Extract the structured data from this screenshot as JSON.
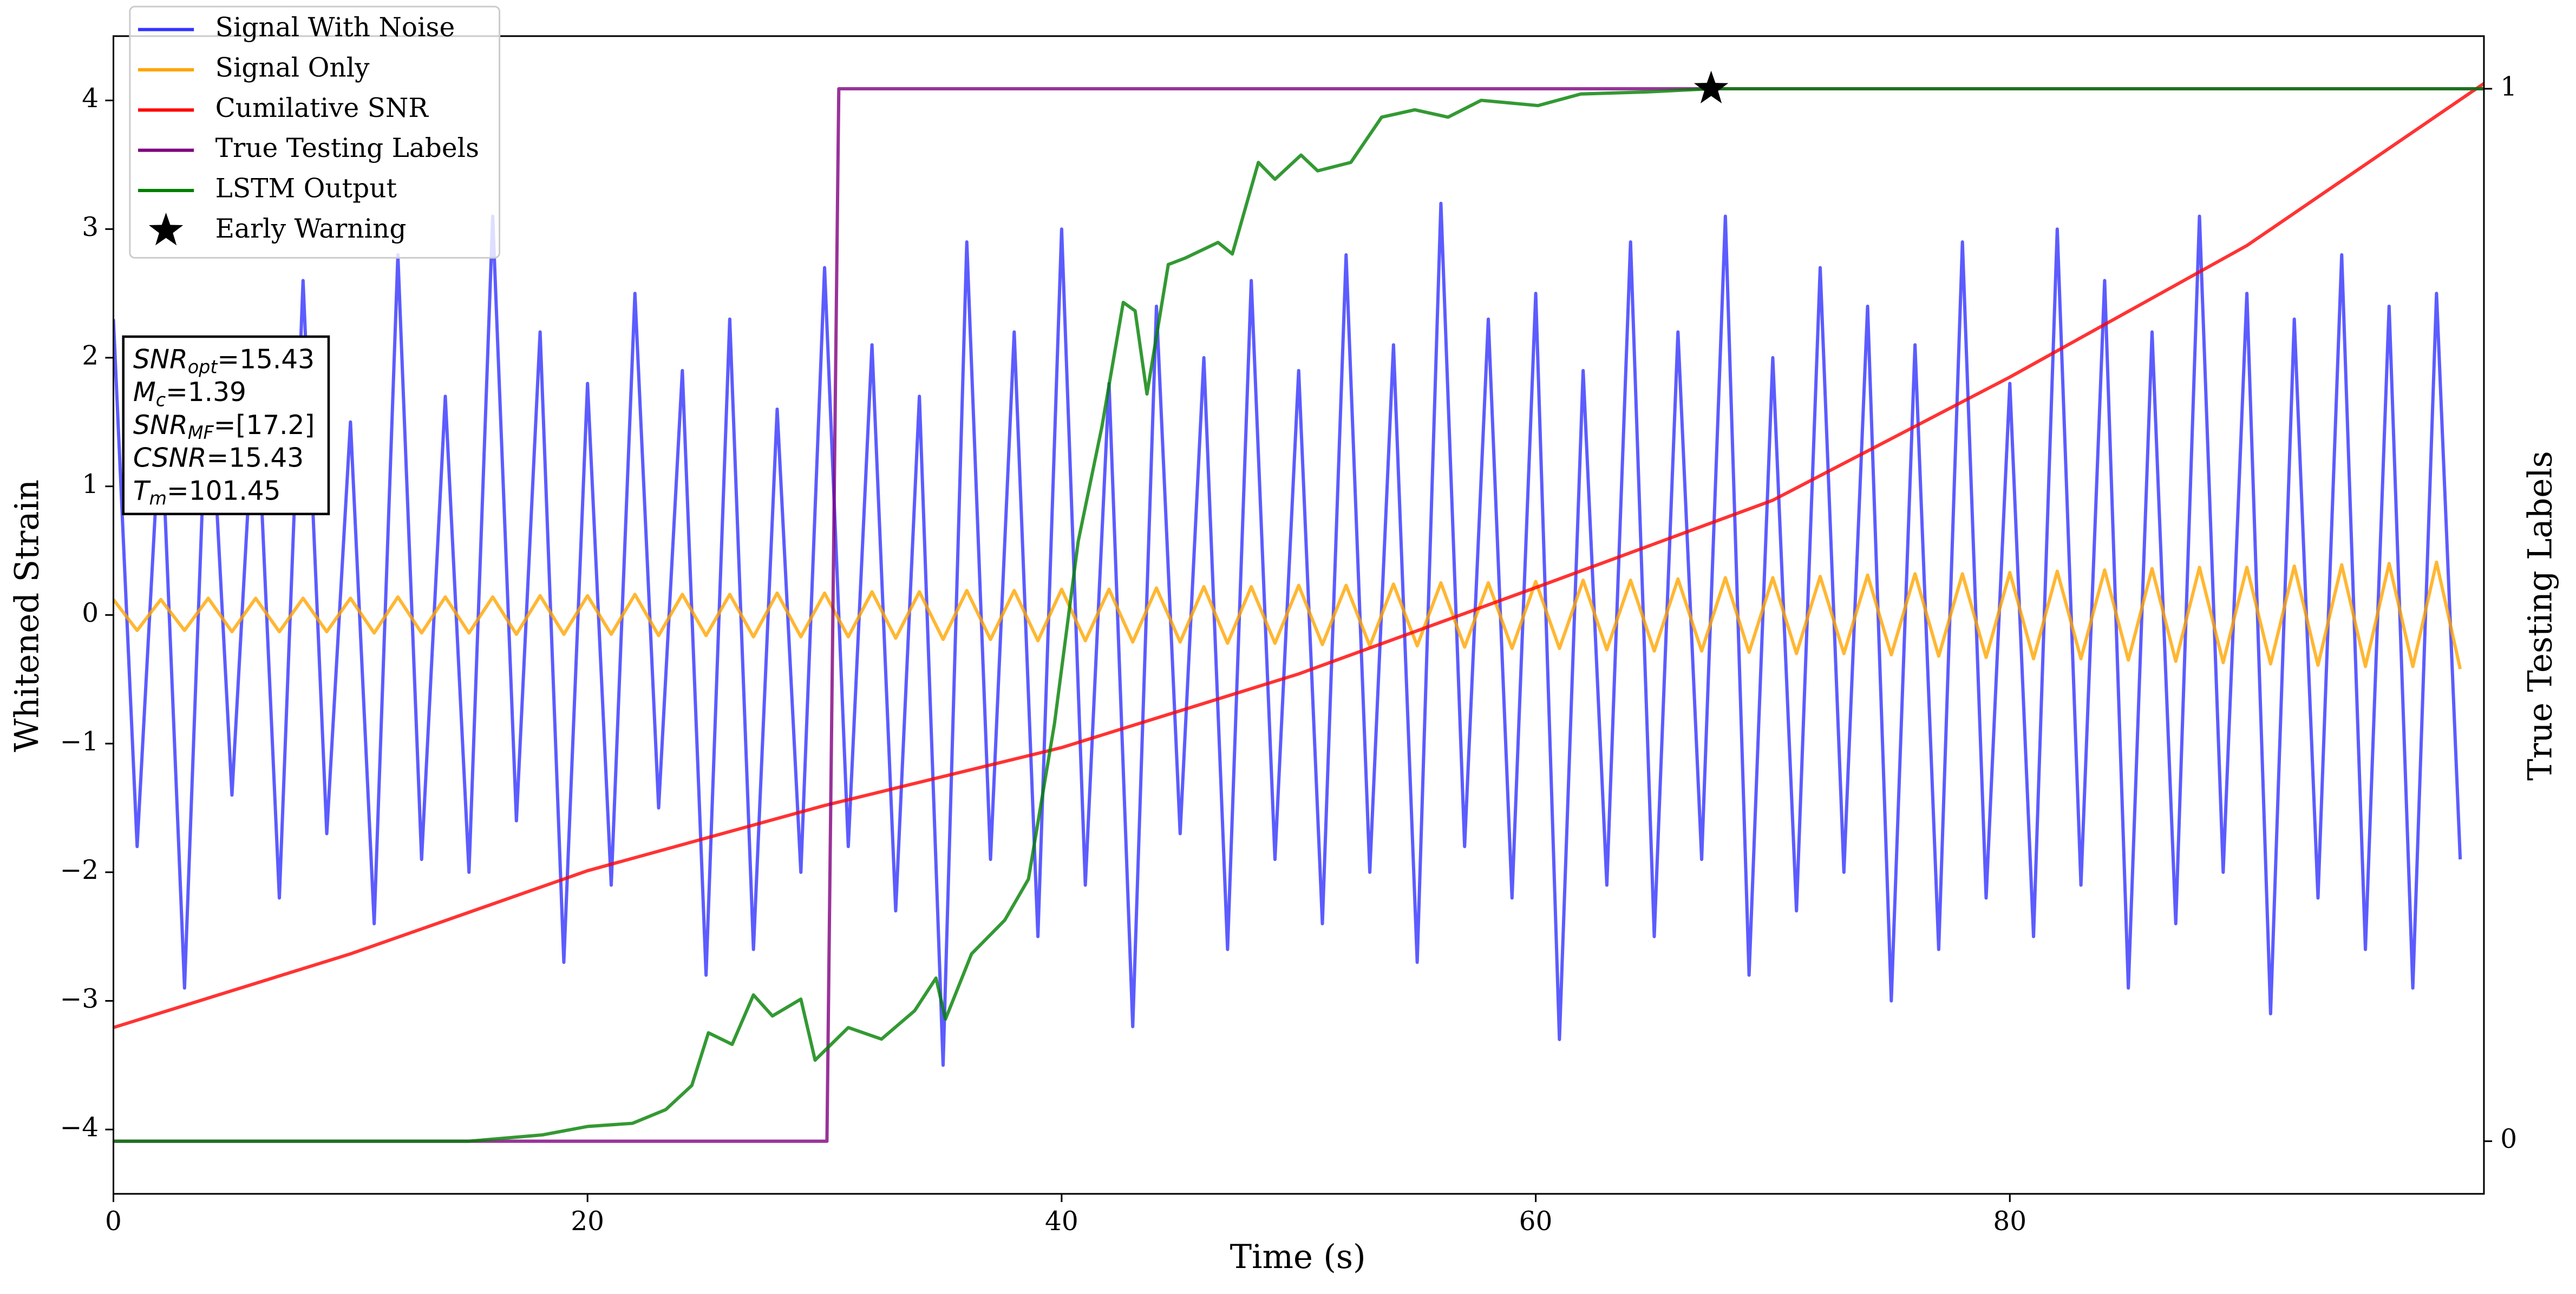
{
  "chart_data": {
    "type": "line",
    "xlabel": "Time (s)",
    "ylabel": "Whitened Strain",
    "y2label": "True Testing Labels",
    "xlim": [
      0,
      100
    ],
    "xticks": [
      0,
      20,
      40,
      60,
      80
    ],
    "ylim": [
      -4.5,
      4.5
    ],
    "yticks": [
      {
        "value": -4,
        "label": "−4"
      },
      {
        "value": -3,
        "label": "−3"
      },
      {
        "value": -2,
        "label": "−2"
      },
      {
        "value": -1,
        "label": "−1"
      },
      0,
      1,
      2,
      3,
      4
    ],
    "y2lim": [
      -0.05,
      1.05
    ],
    "y2ticks": [
      0,
      1
    ],
    "legend": "upper left",
    "x": [
      0,
      1,
      2,
      3,
      4,
      5,
      6,
      7,
      8,
      9,
      10,
      11,
      12,
      13,
      14,
      15,
      16,
      17,
      18,
      19,
      20,
      21,
      22,
      23,
      24,
      25,
      26,
      27,
      28,
      29,
      30,
      31,
      32,
      33,
      34,
      35,
      36,
      37,
      38,
      39,
      40,
      41,
      42,
      43,
      44,
      45,
      46,
      47,
      48,
      49,
      50,
      51,
      52,
      53,
      54,
      55,
      56,
      57,
      58,
      59,
      60,
      61,
      62,
      63,
      64,
      65,
      66,
      67,
      68,
      69,
      70,
      71,
      72,
      73,
      74,
      75,
      76,
      77,
      78,
      79,
      80,
      81,
      82,
      83,
      84,
      85,
      86,
      87,
      88,
      89,
      90,
      91,
      92,
      93,
      94,
      95,
      96,
      97,
      98,
      99
    ],
    "series": [
      {
        "name": "Signal With Noise",
        "color": "#3333ff",
        "values": [
          2.3,
          -1.8,
          1.6,
          -2.9,
          2.1,
          -1.4,
          1.9,
          -2.2,
          2.6,
          -1.7,
          1.5,
          -2.4,
          2.8,
          -1.9,
          1.7,
          -2.0,
          3.1,
          -1.6,
          2.2,
          -2.7,
          1.8,
          -2.1,
          2.5,
          -1.5,
          1.9,
          -2.8,
          2.3,
          -2.6,
          1.6,
          -2.0,
          2.7,
          -1.8,
          2.1,
          -2.3,
          1.7,
          -3.5,
          2.9,
          -1.9,
          2.2,
          -2.5,
          3.0,
          -2.1,
          1.8,
          -3.2,
          2.4,
          -1.7,
          2.0,
          -2.6,
          2.6,
          -1.9,
          1.9,
          -2.4,
          2.8,
          -2.0,
          2.1,
          -2.7,
          3.2,
          -1.8,
          2.3,
          -2.2,
          2.5,
          -3.3,
          1.9,
          -2.1,
          2.9,
          -2.5,
          2.2,
          -1.9,
          3.1,
          -2.8,
          2.0,
          -2.3,
          2.7,
          -2.0,
          2.4,
          -3.0,
          2.1,
          -2.6,
          2.9,
          -2.2,
          1.8,
          -2.5,
          3.0,
          -2.1,
          2.6,
          -2.9,
          2.2,
          -2.4,
          3.1,
          -2.0,
          2.5,
          -3.1,
          2.3,
          -2.2,
          2.8,
          -2.6,
          2.4,
          -2.9,
          2.5,
          -1.9
        ]
      },
      {
        "name": "Signal Only",
        "color": "#ffa500",
        "values": [
          0.12,
          -0.12,
          0.12,
          -0.12,
          0.13,
          -0.13,
          0.13,
          -0.13,
          0.13,
          -0.13,
          0.13,
          -0.14,
          0.14,
          -0.14,
          0.14,
          -0.14,
          0.14,
          -0.15,
          0.15,
          -0.15,
          0.15,
          -0.15,
          0.16,
          -0.16,
          0.16,
          -0.16,
          0.16,
          -0.17,
          0.17,
          -0.17,
          0.17,
          -0.17,
          0.18,
          -0.18,
          0.18,
          -0.19,
          0.19,
          -0.19,
          0.19,
          -0.2,
          0.2,
          -0.2,
          0.2,
          -0.21,
          0.21,
          -0.21,
          0.22,
          -0.22,
          0.22,
          -0.22,
          0.23,
          -0.23,
          0.23,
          -0.24,
          0.24,
          -0.24,
          0.25,
          -0.25,
          0.25,
          -0.26,
          0.26,
          -0.26,
          0.27,
          -0.27,
          0.27,
          -0.28,
          0.28,
          -0.28,
          0.29,
          -0.29,
          0.29,
          -0.3,
          0.3,
          -0.3,
          0.31,
          -0.31,
          0.32,
          -0.32,
          0.32,
          -0.33,
          0.33,
          -0.34,
          0.34,
          -0.34,
          0.35,
          -0.35,
          0.36,
          -0.36,
          0.37,
          -0.37,
          0.37,
          -0.38,
          0.38,
          -0.39,
          0.39,
          -0.4,
          0.4,
          -0.4,
          0.41,
          -0.42
        ]
      },
      {
        "name": "Cumilative SNR",
        "color": "#ff0000",
        "axis": "y2",
        "x": [
          0,
          10,
          20,
          30,
          40,
          50,
          60,
          70,
          80,
          90,
          100
        ],
        "values": [
          0.108,
          0.178,
          0.257,
          0.319,
          0.374,
          0.444,
          0.526,
          0.609,
          0.726,
          0.851,
          1.005
        ]
      },
      {
        "name": "True Testing Labels",
        "color": "#800080",
        "axis": "y2",
        "x": [
          0,
          30.1,
          30.6,
          100
        ],
        "values": [
          0,
          0,
          1,
          1
        ]
      },
      {
        "name": "LSTM Output",
        "color": "#008000",
        "axis": "y2",
        "x": [
          0,
          15,
          18.1,
          20,
          21.9,
          23.3,
          24.4,
          25.1,
          26.1,
          27,
          27.8,
          29,
          29.6,
          31,
          32.4,
          33.8,
          34.7,
          35.1,
          36.2,
          37.6,
          38.6,
          39.7,
          40.7,
          41.7,
          42.6,
          43.1,
          43.6,
          44.5,
          45.2,
          46.6,
          47.2,
          48.3,
          49,
          50.1,
          50.8,
          52.2,
          53.5,
          54.9,
          56.3,
          57.7,
          60.1,
          61.9,
          64.7,
          67.4,
          71.6,
          100
        ],
        "values": [
          0,
          0,
          0.006,
          0.014,
          0.017,
          0.03,
          0.053,
          0.103,
          0.092,
          0.139,
          0.119,
          0.135,
          0.077,
          0.108,
          0.097,
          0.124,
          0.155,
          0.116,
          0.178,
          0.21,
          0.249,
          0.397,
          0.57,
          0.679,
          0.797,
          0.789,
          0.71,
          0.833,
          0.839,
          0.854,
          0.843,
          0.93,
          0.914,
          0.937,
          0.922,
          0.93,
          0.973,
          0.98,
          0.973,
          0.989,
          0.984,
          0.995,
          0.997,
          1,
          1,
          1
        ]
      }
    ],
    "markers": [
      {
        "name": "Early Warning",
        "x": 67.4,
        "y": 1,
        "axis": "y2",
        "color": "#000000"
      }
    ],
    "annotation": [
      {
        "main": "SNR",
        "sub": "opt",
        "rest": "=15.43"
      },
      {
        "main": "M",
        "sub": "c",
        "rest": "=1.39"
      },
      {
        "main": "SNR",
        "sub": "MF",
        "rest": "=[17.2]"
      },
      {
        "main": "CSNR",
        "rest": "=15.43"
      },
      {
        "main": "T",
        "sub": "m",
        "rest": "=101.45"
      }
    ]
  }
}
